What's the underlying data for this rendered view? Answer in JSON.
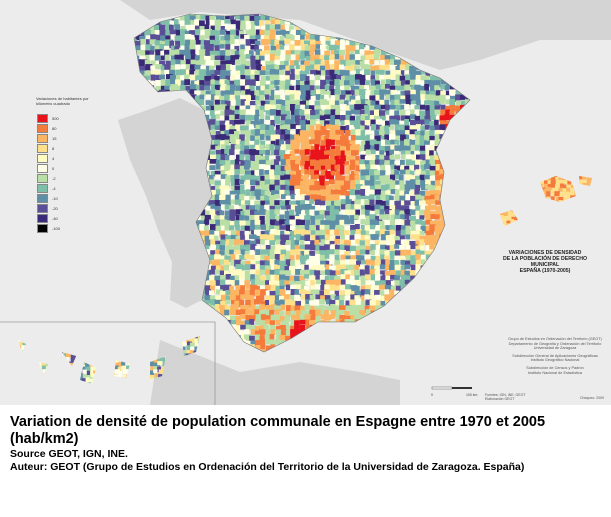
{
  "map": {
    "legend": {
      "title": "Variaciones de habitantes por kilómetro cuadrado",
      "items": [
        {
          "label": "500",
          "color": "#e8141b"
        },
        {
          "label": "80",
          "color": "#f47b3c"
        },
        {
          "label": "15",
          "color": "#fbb563"
        },
        {
          "label": "8",
          "color": "#ffe08a"
        },
        {
          "label": "4",
          "color": "#fffbc4"
        },
        {
          "label": "0",
          "color": "#ffffe8"
        },
        {
          "label": "-2",
          "color": "#b9dfa6"
        },
        {
          "label": "-4",
          "color": "#7fbea8"
        },
        {
          "label": "-10",
          "color": "#5e8fa6"
        },
        {
          "label": "-20",
          "color": "#5a4e97"
        },
        {
          "label": "-40",
          "color": "#3a2a78"
        },
        {
          "label": "-100",
          "color": "#000000"
        }
      ]
    },
    "heading": [
      "VARIACIONES DE DENSIDAD",
      "DE LA POBLACIÓN DE DERECHO",
      "MUNICIPAL",
      "ESPAÑA (1970-2005)"
    ],
    "credits": [
      [
        "Grupo de Estudios en Ordenación del Territorio (GEOT)",
        "Departamento de Geografía y Ordenación del Territorio",
        "Universidad de Zaragoza"
      ],
      [
        "Subdirección General de Aplicaciones Geográficas",
        "Instituto Geográfico Nacional"
      ],
      [
        "Subdirección de Censos y Padrón",
        "Instituto Nacional de Estadística"
      ]
    ],
    "scale": {
      "start": "0",
      "end": "100 km"
    },
    "footer_left": [
      "Fuentes: IGN, INE, GEOT",
      "Elaboración GEOT"
    ],
    "footer_right": "Chequeo: 2009"
  },
  "caption": {
    "title": "Variation de densité de population communale en Espagne entre 1970 et 2005 (hab/km2)",
    "source": "Source GEOT, IGN, INE.",
    "author": "Auteur: GEOT (Grupo de Estudios en Ordenación del Territorio de la Universidad de Zaragoza. España)"
  }
}
